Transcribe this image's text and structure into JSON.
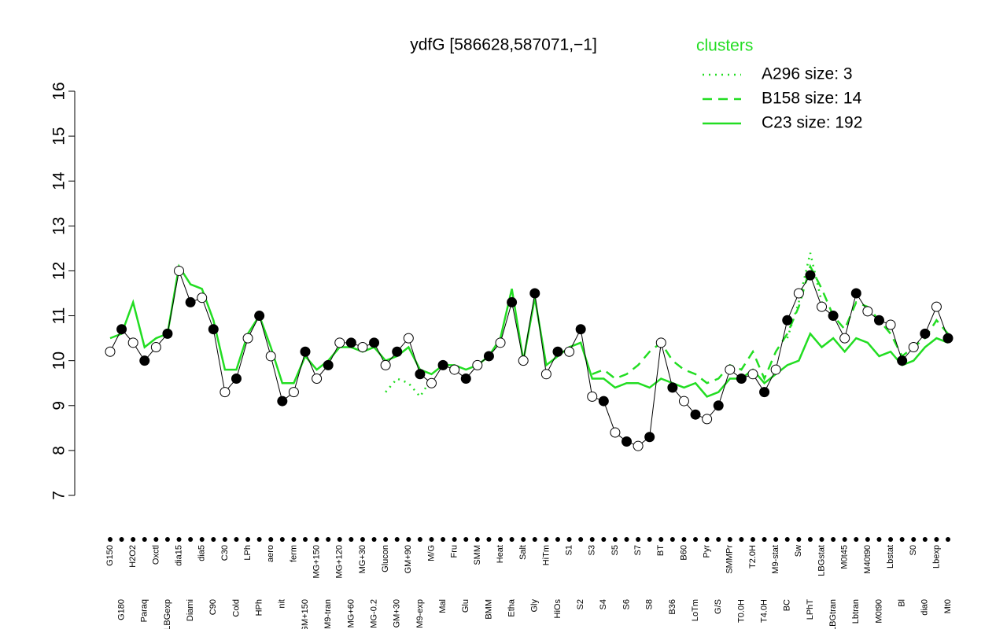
{
  "chart_data": {
    "type": "line",
    "title": "ydfG [586628,587071,−1]",
    "legend_title": "clusters",
    "categories": [
      "G150",
      "G180",
      "H2O2",
      "Paraq",
      "Oxctl",
      "LBGexp",
      "dia15",
      "Diami",
      "dia5",
      "C90",
      "C30",
      "Cold",
      "LPh",
      "HPh",
      "aero",
      "nit",
      "ferm",
      "GM+150",
      "MG+150",
      "M9-tran",
      "MG+120",
      "MG+60",
      "MG+30",
      "MG-0.2",
      "Glucon",
      "GM+30",
      "GM+90",
      "M9-exp",
      "M/G",
      "Mal",
      "Fru",
      "Glu",
      "SMM",
      "BMM",
      "Heat",
      "Etha",
      "Salt",
      "Gly",
      "HiTm",
      "HiOs",
      "S1",
      "S2",
      "S3",
      "S4",
      "S5",
      "S6",
      "S7",
      "S8",
      "BT",
      "B36",
      "B60",
      "LoTm",
      "Pyr",
      "G/S",
      "SMMPr",
      "T0.0H",
      "T2.0H",
      "T4.0H",
      "M9-stat",
      "BC",
      "Sw",
      "LPhT",
      "LBGstat",
      "LBGtran",
      "M0t45",
      "Lbtran",
      "M40t90",
      "M0t90",
      "Lbstat",
      "Bl",
      "S0",
      "dia0",
      "Lbexp",
      "Mt0"
    ],
    "values": [
      10.2,
      10.7,
      10.4,
      10.0,
      10.3,
      10.6,
      12.0,
      11.3,
      11.4,
      10.7,
      9.3,
      9.6,
      10.5,
      11.0,
      10.1,
      9.1,
      9.3,
      10.2,
      9.6,
      9.9,
      10.4,
      10.4,
      10.3,
      10.4,
      9.9,
      10.2,
      10.5,
      9.7,
      9.5,
      9.9,
      9.8,
      9.6,
      9.9,
      10.1,
      10.4,
      11.3,
      10.0,
      11.5,
      9.7,
      10.2,
      10.2,
      10.7,
      9.2,
      9.1,
      8.4,
      8.2,
      8.1,
      8.3,
      10.4,
      9.4,
      9.1,
      8.8,
      8.7,
      9.0,
      9.8,
      9.6,
      9.7,
      9.3,
      9.8,
      10.9,
      11.5,
      11.9,
      11.2,
      11.0,
      10.5,
      11.5,
      11.1,
      10.9,
      10.8,
      10.0,
      10.3,
      10.6,
      11.2,
      10.5
    ],
    "color": "#000000",
    "series": [
      {
        "name": "A296 size: 3",
        "color": "#22dd22",
        "dash": "dotted",
        "values": [
          null,
          null,
          null,
          null,
          null,
          null,
          null,
          null,
          null,
          null,
          null,
          null,
          null,
          null,
          null,
          null,
          null,
          null,
          null,
          null,
          null,
          null,
          null,
          null,
          9.3,
          9.6,
          9.5,
          9.2,
          9.6,
          null,
          null,
          null,
          null,
          null,
          null,
          null,
          null,
          null,
          null,
          null,
          null,
          null,
          null,
          null,
          null,
          null,
          null,
          null,
          null,
          null,
          null,
          null,
          null,
          null,
          null,
          null,
          null,
          null,
          null,
          10.5,
          11.3,
          12.4,
          11.3,
          null,
          null,
          null,
          null,
          null,
          null,
          null,
          null,
          null,
          null,
          null
        ]
      },
      {
        "name": "B158 size: 14",
        "color": "#22dd22",
        "dash": "dashed",
        "values": [
          null,
          null,
          null,
          null,
          null,
          null,
          null,
          null,
          null,
          null,
          null,
          null,
          null,
          null,
          null,
          null,
          null,
          null,
          null,
          null,
          null,
          null,
          null,
          null,
          null,
          null,
          null,
          null,
          null,
          null,
          null,
          null,
          null,
          null,
          null,
          null,
          null,
          null,
          null,
          null,
          null,
          null,
          9.7,
          9.8,
          9.6,
          9.7,
          9.9,
          10.2,
          10.4,
          10.0,
          9.8,
          9.7,
          9.5,
          9.6,
          9.9,
          9.8,
          10.2,
          9.6,
          10.2,
          10.6,
          11.2,
          12.1,
          11.6,
          11.0,
          10.7,
          11.3,
          11.2,
          10.9,
          10.6,
          10.1,
          10.3,
          10.5,
          10.9,
          10.6
        ]
      },
      {
        "name": "C23 size: 192",
        "color": "#22dd22",
        "dash": "solid",
        "values": [
          10.5,
          10.6,
          11.3,
          10.3,
          10.5,
          10.6,
          12.1,
          11.7,
          11.6,
          10.9,
          9.8,
          9.8,
          10.6,
          11.0,
          10.3,
          9.5,
          9.5,
          10.1,
          9.8,
          10.0,
          10.3,
          10.3,
          10.2,
          10.3,
          10.0,
          10.1,
          10.3,
          9.8,
          9.7,
          9.9,
          9.9,
          9.8,
          9.9,
          10.1,
          10.5,
          11.6,
          10.0,
          11.4,
          9.9,
          10.1,
          10.3,
          10.4,
          9.6,
          9.6,
          9.4,
          9.5,
          9.5,
          9.4,
          9.6,
          9.5,
          9.4,
          9.5,
          9.2,
          9.3,
          9.6,
          9.6,
          9.8,
          9.5,
          9.7,
          9.9,
          10.0,
          10.6,
          10.3,
          10.5,
          10.2,
          10.5,
          10.4,
          10.1,
          10.2,
          9.9,
          10.0,
          10.3,
          10.5,
          10.4
        ]
      }
    ],
    "ylim": [
      7,
      16
    ],
    "yticks": [
      7,
      8,
      9,
      10,
      11,
      12,
      13,
      14,
      15,
      16
    ],
    "grid": false,
    "legend": "top-right"
  }
}
